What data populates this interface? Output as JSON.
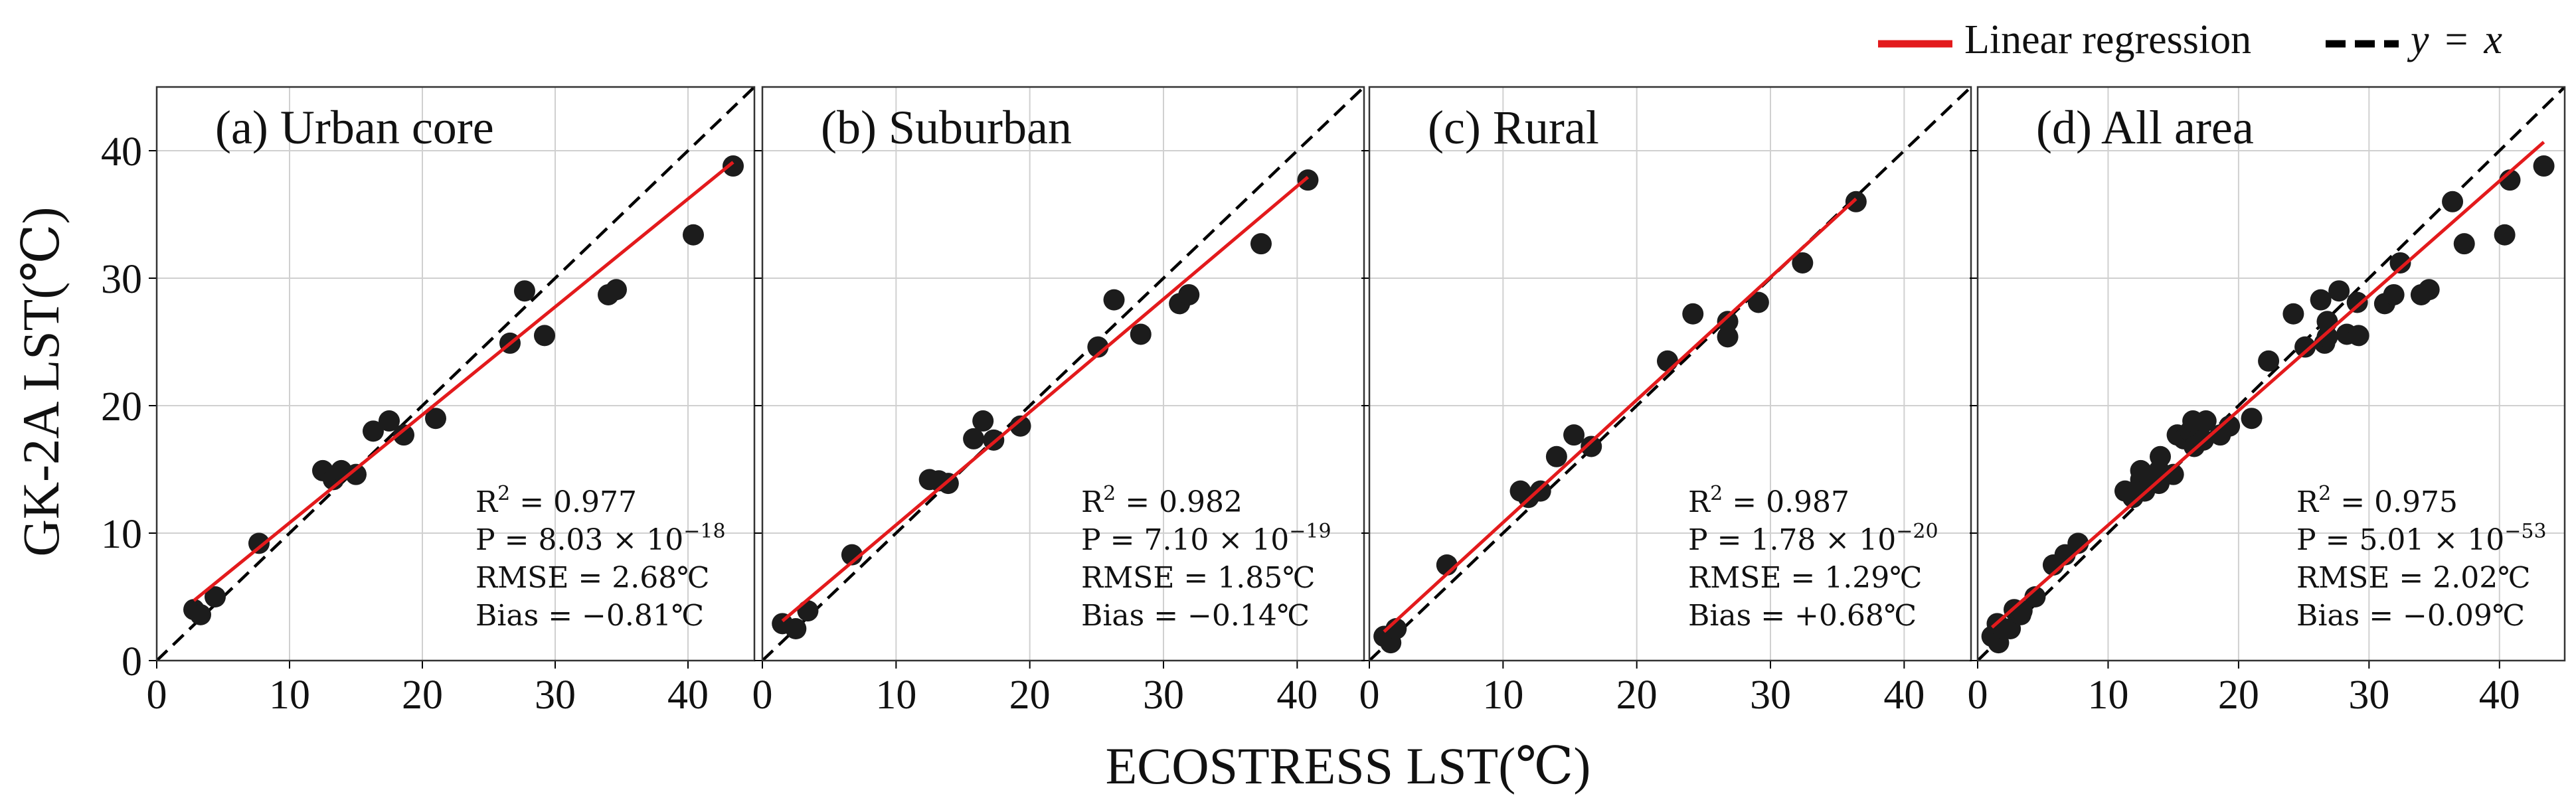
{
  "figure": {
    "xlabel": "ECOSTRESS LST(℃)",
    "ylabel": "GK-2A  LST(℃)",
    "legend": [
      {
        "label": "Linear regression",
        "style": "solid",
        "color": "#e31a1c"
      },
      {
        "label": "y = x",
        "style": "dashed",
        "color": "#000000"
      }
    ],
    "colors": {
      "points": "#1c1c1c",
      "regression": "#e31a1c",
      "identity": "#000000",
      "grid": "#d0d0d0"
    }
  },
  "chart_data": [
    {
      "type": "scatter",
      "title": "(a) Urban core",
      "xlim": [
        0,
        45
      ],
      "ylim": [
        0,
        45
      ],
      "xticks": [
        0,
        10,
        20,
        30,
        40
      ],
      "yticks": [
        0,
        10,
        20,
        30,
        40
      ],
      "show_yticklabels": true,
      "grid": true,
      "points": [
        [
          2.8,
          4.0
        ],
        [
          3.3,
          3.6
        ],
        [
          4.4,
          5.0
        ],
        [
          7.7,
          9.2
        ],
        [
          12.5,
          14.9
        ],
        [
          13.3,
          14.2
        ],
        [
          13.9,
          14.9
        ],
        [
          15.0,
          14.6
        ],
        [
          16.3,
          18.0
        ],
        [
          17.5,
          18.8
        ],
        [
          18.6,
          17.7
        ],
        [
          21.0,
          19.0
        ],
        [
          26.6,
          24.9
        ],
        [
          27.7,
          29.0
        ],
        [
          29.2,
          25.5
        ],
        [
          34.0,
          28.7
        ],
        [
          34.6,
          29.1
        ],
        [
          40.4,
          33.4
        ],
        [
          43.4,
          38.8
        ]
      ],
      "fit": {
        "slope": 0.847,
        "intercept": 2.34
      },
      "stats": {
        "r2_label": "R",
        "r2_exp": "2",
        "r2_value": " = 0.977",
        "p_label": "P = 8.03 × 10",
        "p_exp": "−18",
        "rmse": "RMSE = 2.68℃",
        "bias": "Bias = −0.81℃"
      }
    },
    {
      "type": "scatter",
      "title": "(b) Suburban",
      "xlim": [
        0,
        45
      ],
      "ylim": [
        0,
        45
      ],
      "xticks": [
        0,
        10,
        20,
        30,
        40
      ],
      "yticks": [
        0,
        10,
        20,
        30,
        40
      ],
      "show_yticklabels": false,
      "grid": true,
      "points": [
        [
          1.5,
          2.9
        ],
        [
          2.5,
          2.5
        ],
        [
          3.4,
          3.9
        ],
        [
          6.7,
          8.3
        ],
        [
          12.5,
          14.2
        ],
        [
          13.2,
          14.1
        ],
        [
          13.9,
          13.9
        ],
        [
          15.8,
          17.4
        ],
        [
          16.5,
          18.8
        ],
        [
          17.3,
          17.3
        ],
        [
          19.3,
          18.4
        ],
        [
          25.1,
          24.6
        ],
        [
          26.3,
          28.3
        ],
        [
          28.3,
          25.6
        ],
        [
          31.2,
          28.0
        ],
        [
          31.9,
          28.7
        ],
        [
          37.3,
          32.7
        ],
        [
          40.8,
          37.7
        ]
      ],
      "fit": {
        "slope": 0.886,
        "intercept": 1.78
      },
      "stats": {
        "r2_label": "R",
        "r2_exp": "2",
        "r2_value": " = 0.982",
        "p_label": "P = 7.10 × 10",
        "p_exp": "−19",
        "rmse": "RMSE = 1.85℃",
        "bias": "Bias = −0.14℃"
      }
    },
    {
      "type": "scatter",
      "title": "(c) Rural",
      "xlim": [
        0,
        45
      ],
      "ylim": [
        0,
        45
      ],
      "xticks": [
        0,
        10,
        20,
        30,
        40
      ],
      "yticks": [
        0,
        10,
        20,
        30,
        40
      ],
      "show_yticklabels": false,
      "grid": true,
      "points": [
        [
          1.1,
          1.9
        ],
        [
          1.6,
          1.4
        ],
        [
          2.0,
          2.5
        ],
        [
          5.8,
          7.5
        ],
        [
          11.3,
          13.3
        ],
        [
          11.9,
          12.8
        ],
        [
          12.8,
          13.3
        ],
        [
          14.0,
          16.0
        ],
        [
          15.3,
          17.7
        ],
        [
          16.6,
          16.8
        ],
        [
          22.3,
          23.5
        ],
        [
          24.2,
          27.2
        ],
        [
          26.8,
          26.6
        ],
        [
          26.8,
          25.4
        ],
        [
          29.1,
          28.1
        ],
        [
          32.4,
          31.2
        ],
        [
          36.4,
          36.0
        ]
      ],
      "fit": {
        "slope": 0.962,
        "intercept": 1.21
      },
      "stats": {
        "r2_label": "R",
        "r2_exp": "2",
        "r2_value": " = 0.987",
        "p_label": "P = 1.78 × 10",
        "p_exp": "−20",
        "rmse": "RMSE = 1.29℃",
        "bias": "Bias = +0.68℃"
      }
    },
    {
      "type": "scatter",
      "title": "(d) All area",
      "xlim": [
        0,
        45
      ],
      "ylim": [
        0,
        45
      ],
      "xticks": [
        0,
        10,
        20,
        30,
        40
      ],
      "yticks": [
        0,
        10,
        20,
        30,
        40
      ],
      "show_yticklabels": false,
      "grid": true,
      "points": [
        [
          1.1,
          1.9
        ],
        [
          1.6,
          1.4
        ],
        [
          1.5,
          2.9
        ],
        [
          2.0,
          2.5
        ],
        [
          2.5,
          2.5
        ],
        [
          2.8,
          4.0
        ],
        [
          3.3,
          3.6
        ],
        [
          3.4,
          3.9
        ],
        [
          4.4,
          5.0
        ],
        [
          5.8,
          7.5
        ],
        [
          6.7,
          8.3
        ],
        [
          7.7,
          9.2
        ],
        [
          11.3,
          13.3
        ],
        [
          11.9,
          12.8
        ],
        [
          12.5,
          14.2
        ],
        [
          12.5,
          14.9
        ],
        [
          12.8,
          13.3
        ],
        [
          13.2,
          14.1
        ],
        [
          13.3,
          14.2
        ],
        [
          13.9,
          13.9
        ],
        [
          13.9,
          14.9
        ],
        [
          14.0,
          16.0
        ],
        [
          15.0,
          14.6
        ],
        [
          15.3,
          17.7
        ],
        [
          15.8,
          17.4
        ],
        [
          16.3,
          18.0
        ],
        [
          16.5,
          18.8
        ],
        [
          16.6,
          16.8
        ],
        [
          17.3,
          17.3
        ],
        [
          17.5,
          18.8
        ],
        [
          18.6,
          17.7
        ],
        [
          19.3,
          18.4
        ],
        [
          21.0,
          19.0
        ],
        [
          22.3,
          23.5
        ],
        [
          24.2,
          27.2
        ],
        [
          25.1,
          24.6
        ],
        [
          26.3,
          28.3
        ],
        [
          26.6,
          24.9
        ],
        [
          26.8,
          26.6
        ],
        [
          26.8,
          25.4
        ],
        [
          27.7,
          29.0
        ],
        [
          28.3,
          25.6
        ],
        [
          29.1,
          28.1
        ],
        [
          29.2,
          25.5
        ],
        [
          31.2,
          28.0
        ],
        [
          31.9,
          28.7
        ],
        [
          32.4,
          31.2
        ],
        [
          34.0,
          28.7
        ],
        [
          34.6,
          29.1
        ],
        [
          36.4,
          36.0
        ],
        [
          37.3,
          32.7
        ],
        [
          40.4,
          33.4
        ],
        [
          40.8,
          37.7
        ],
        [
          43.4,
          38.8
        ]
      ],
      "fit": {
        "slope": 0.9,
        "intercept": 1.62
      },
      "stats": {
        "r2_label": "R",
        "r2_exp": "2",
        "r2_value": " = 0.975",
        "p_label": "P = 5.01 × 10",
        "p_exp": "−53",
        "rmse": "RMSE = 2.02℃",
        "bias": "Bias = −0.09℃"
      }
    }
  ]
}
